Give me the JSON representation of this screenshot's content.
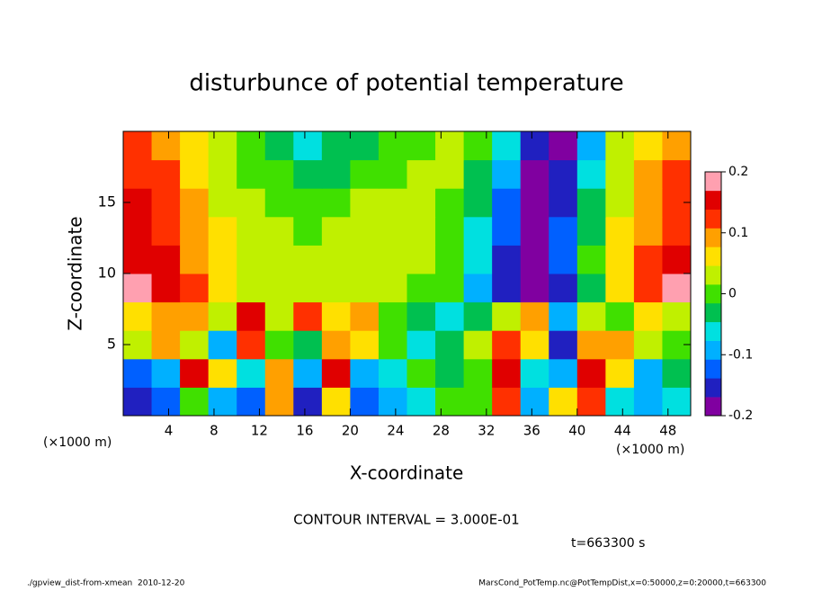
{
  "chart_data": {
    "type": "heatmap",
    "title": "disturbunce of potential temperature",
    "xlabel": "X-coordinate",
    "ylabel": "Z-coordinate",
    "x_unit_label": "(×1000 m)",
    "y_unit_label": "(×1000 m)",
    "x_edges": [
      0,
      2.5,
      5,
      7.5,
      10,
      12.5,
      15,
      17.5,
      20,
      22.5,
      25,
      27.5,
      30,
      32.5,
      35,
      37.5,
      40,
      42.5,
      45,
      47.5,
      50
    ],
    "y_edges": [
      0,
      2,
      4,
      6,
      8,
      10,
      12,
      14,
      16,
      18,
      20
    ],
    "values": [
      [
        -0.15,
        -0.12,
        0.0,
        -0.08,
        -0.12,
        0.1,
        -0.15,
        0.05,
        -0.12,
        -0.1,
        -0.05,
        0.0,
        0.0,
        0.12,
        -0.1,
        0.05,
        0.12,
        -0.05,
        -0.1,
        -0.05
      ],
      [
        -0.12,
        -0.1,
        0.15,
        0.05,
        -0.05,
        0.1,
        -0.08,
        0.15,
        -0.1,
        -0.05,
        0.0,
        -0.02,
        0.0,
        0.15,
        -0.05,
        -0.1,
        0.15,
        0.05,
        -0.08,
        -0.02
      ],
      [
        0.02,
        0.1,
        0.03,
        -0.08,
        0.12,
        0.0,
        -0.02,
        0.08,
        0.05,
        0.0,
        -0.05,
        -0.03,
        0.02,
        0.12,
        0.05,
        -0.15,
        0.08,
        0.1,
        0.02,
        0.01
      ],
      [
        0.05,
        0.08,
        0.1,
        0.02,
        0.15,
        0.03,
        0.12,
        0.05,
        0.08,
        0.0,
        -0.02,
        -0.05,
        -0.03,
        0.04,
        0.1,
        -0.1,
        0.02,
        0.0,
        0.05,
        0.03
      ],
      [
        0.18,
        0.16,
        0.12,
        0.07,
        0.04,
        0.03,
        0.02,
        0.03,
        0.03,
        0.02,
        0.01,
        -0.01,
        -0.08,
        -0.15,
        -0.2,
        -0.14,
        -0.02,
        0.07,
        0.13,
        0.17
      ],
      [
        0.16,
        0.14,
        0.1,
        0.06,
        0.04,
        0.02,
        0.02,
        0.03,
        0.03,
        0.03,
        0.02,
        0.0,
        -0.06,
        -0.14,
        -0.2,
        -0.12,
        -0.01,
        0.06,
        0.11,
        0.14
      ],
      [
        0.15,
        0.13,
        0.09,
        0.05,
        0.03,
        0.02,
        0.01,
        0.02,
        0.03,
        0.03,
        0.02,
        0.01,
        -0.05,
        -0.13,
        -0.2,
        -0.13,
        -0.02,
        0.05,
        0.1,
        0.13
      ],
      [
        0.14,
        0.12,
        0.08,
        0.04,
        0.02,
        0.01,
        0.0,
        0.01,
        0.02,
        0.02,
        0.02,
        0.01,
        -0.04,
        -0.12,
        -0.2,
        -0.14,
        -0.03,
        0.04,
        0.09,
        0.12
      ],
      [
        0.13,
        0.11,
        0.07,
        0.03,
        0.01,
        -0.01,
        -0.02,
        -0.02,
        0.0,
        0.01,
        0.02,
        0.02,
        -0.02,
        -0.1,
        -0.18,
        -0.15,
        -0.05,
        0.03,
        0.08,
        0.11
      ],
      [
        0.12,
        0.1,
        0.07,
        0.03,
        0.0,
        -0.03,
        -0.05,
        -0.04,
        -0.02,
        0.0,
        0.01,
        0.02,
        0.0,
        -0.06,
        -0.14,
        -0.17,
        -0.1,
        0.02,
        0.07,
        0.1
      ]
    ],
    "xlim": [
      0,
      50
    ],
    "xticks": [
      4,
      8,
      12,
      16,
      20,
      24,
      28,
      32,
      36,
      40,
      44,
      48
    ],
    "ylim": [
      0,
      20
    ],
    "yticks": [
      5,
      10,
      15
    ],
    "clim": [
      -0.2,
      0.2
    ],
    "cticks": [
      -0.2,
      -0.1,
      0,
      0.1,
      0.2
    ],
    "colormap": [
      "#8000a0",
      "#2020c0",
      "#0060ff",
      "#00b0ff",
      "#00e0e0",
      "#00c050",
      "#40e000",
      "#c0f000",
      "#ffe000",
      "#ffa000",
      "#ff3000",
      "#e00000",
      "#ffa0b0"
    ],
    "annotations": [
      "CONTOUR INTERVAL = 3.000E-01",
      "t=663300 s"
    ],
    "footer_left": "./gpview_dist-from-xmean  2010-12-20",
    "footer_right": "MarsCond_PotTemp.nc@PotTempDist,x=0:50000,z=0:20000,t=663300"
  }
}
